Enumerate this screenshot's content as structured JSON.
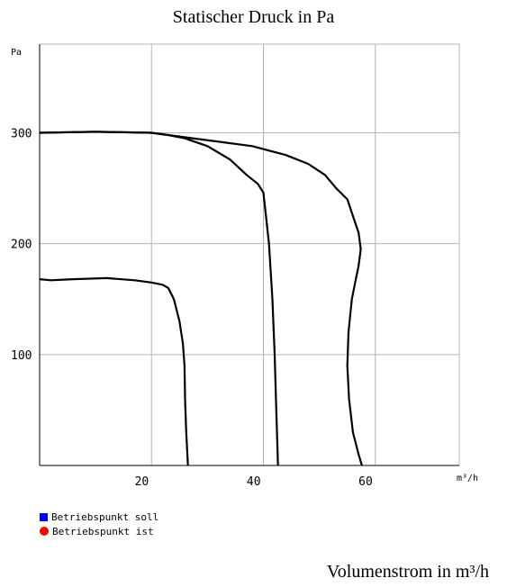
{
  "chart_data": {
    "type": "line",
    "title": "Statischer Druck in Pa",
    "xlabel": "Volumenstrom in m³/h",
    "x_unit": "m³/h",
    "y_unit": "Pa",
    "xlim": [
      0,
      75
    ],
    "ylim": [
      0,
      380
    ],
    "x_ticks": [
      20,
      40,
      60
    ],
    "y_ticks": [
      100,
      200,
      300
    ],
    "grid": true,
    "legend_position": "bottom-left",
    "legend": [
      {
        "label": "Betriebspunkt soll",
        "color": "#0000ff",
        "marker": "square"
      },
      {
        "label": "Betriebspunkt ist",
        "color": "#ff0000",
        "marker": "circle"
      }
    ],
    "series": [
      {
        "points": [
          [
            0,
            168
          ],
          [
            2,
            167
          ],
          [
            6,
            168
          ],
          [
            12,
            169
          ],
          [
            17,
            167
          ],
          [
            20,
            165
          ],
          [
            22,
            163
          ],
          [
            23,
            160
          ],
          [
            24,
            150
          ],
          [
            25,
            130
          ],
          [
            25.6,
            110
          ],
          [
            25.9,
            90
          ],
          [
            26,
            60
          ],
          [
            26.2,
            30
          ],
          [
            26.5,
            0
          ]
        ]
      },
      {
        "points": [
          [
            0,
            300
          ],
          [
            10,
            301
          ],
          [
            20,
            300
          ],
          [
            23,
            298
          ],
          [
            26,
            295
          ],
          [
            30,
            288
          ],
          [
            34,
            276
          ],
          [
            37,
            262
          ],
          [
            39,
            254
          ],
          [
            40,
            246
          ],
          [
            41,
            200
          ],
          [
            41.6,
            150
          ],
          [
            42,
            100
          ],
          [
            42.3,
            50
          ],
          [
            42.6,
            0
          ]
        ]
      },
      {
        "points": [
          [
            0,
            300
          ],
          [
            10,
            301
          ],
          [
            20,
            300
          ],
          [
            26,
            296
          ],
          [
            32,
            292
          ],
          [
            38,
            288
          ],
          [
            44,
            280
          ],
          [
            48,
            272
          ],
          [
            51,
            262
          ],
          [
            53,
            250
          ],
          [
            55,
            240
          ],
          [
            56,
            225
          ],
          [
            57,
            210
          ],
          [
            57.4,
            195
          ],
          [
            57,
            180
          ],
          [
            56.4,
            165
          ],
          [
            55.8,
            150
          ],
          [
            55.2,
            120
          ],
          [
            55,
            90
          ],
          [
            55.3,
            60
          ],
          [
            56,
            30
          ],
          [
            57,
            10
          ],
          [
            57.6,
            0
          ]
        ]
      }
    ]
  }
}
